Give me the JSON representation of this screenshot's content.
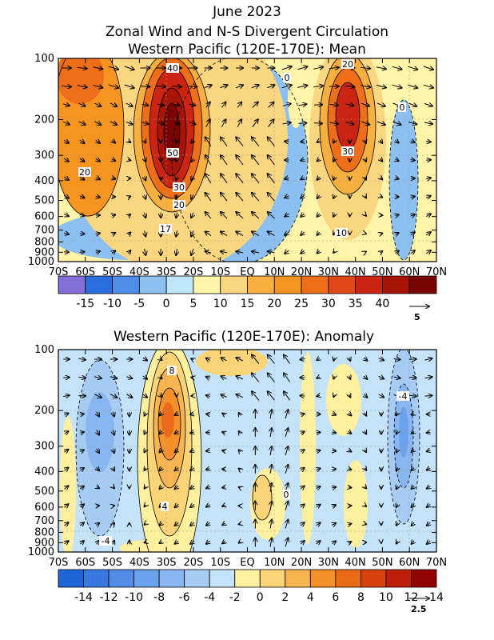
{
  "figure_title": "June 2023",
  "chart_data": [
    {
      "type": "heatmap",
      "title": "Zonal Wind and N-S Divergent Circulation",
      "subtitle": "Western Pacific (120E-170E): Mean",
      "x_ticks": [
        "70S",
        "60S",
        "50S",
        "40S",
        "30S",
        "20S",
        "10S",
        "EQ",
        "10N",
        "20N",
        "30N",
        "40N",
        "50N",
        "60N",
        "70N"
      ],
      "y_ticks": [
        "100",
        "200",
        "300",
        "400",
        "500",
        "600",
        "700",
        "800",
        "900",
        "1000"
      ],
      "y_scale": "log",
      "ylim": [
        1000,
        100
      ],
      "colorbar": {
        "labels": [
          "-15",
          "-10",
          "-5",
          "0",
          "5",
          "10",
          "15",
          "20",
          "25",
          "30",
          "35",
          "40"
        ],
        "colors": [
          "#8470d8",
          "#2a6ee0",
          "#4f8ee8",
          "#8cc0f0",
          "#bfe6f8",
          "#fff4a8",
          "#fad680",
          "#f7b040",
          "#f59520",
          "#ee6e1a",
          "#e04818",
          "#cc2412",
          "#a81408",
          "#7a0404"
        ]
      },
      "contour_labels": [
        "40",
        "50",
        "30",
        "20",
        "17",
        "20",
        "20",
        "30",
        "10",
        "0",
        "0"
      ],
      "reference_vector": "5"
    },
    {
      "type": "heatmap",
      "title": "Western Pacific (120E-170E): Anomaly",
      "x_ticks": [
        "70S",
        "60S",
        "50S",
        "40S",
        "30S",
        "20S",
        "10S",
        "EQ",
        "10N",
        "20N",
        "30N",
        "40N",
        "50N",
        "60N",
        "70N"
      ],
      "y_ticks": [
        "100",
        "200",
        "300",
        "400",
        "500",
        "600",
        "700",
        "800",
        "900",
        "1000"
      ],
      "y_scale": "log",
      "ylim": [
        1000,
        100
      ],
      "colorbar": {
        "labels": [
          "-14",
          "-12",
          "-10",
          "-8",
          "-6",
          "-4",
          "-2",
          "0",
          "2",
          "4",
          "6",
          "8",
          "10",
          "12",
          "14"
        ],
        "colors": [
          "#1e66d8",
          "#3878e0",
          "#528ce6",
          "#6ca2ec",
          "#88b6f0",
          "#a6ccf4",
          "#c4e2f8",
          "#fff0a0",
          "#fcd478",
          "#f8b450",
          "#f49028",
          "#ea6a18",
          "#d84410",
          "#bc200a",
          "#920404"
        ]
      },
      "contour_labels": [
        "8",
        "4",
        "0",
        "-4",
        "-4"
      ],
      "reference_vector": "2.5"
    }
  ]
}
